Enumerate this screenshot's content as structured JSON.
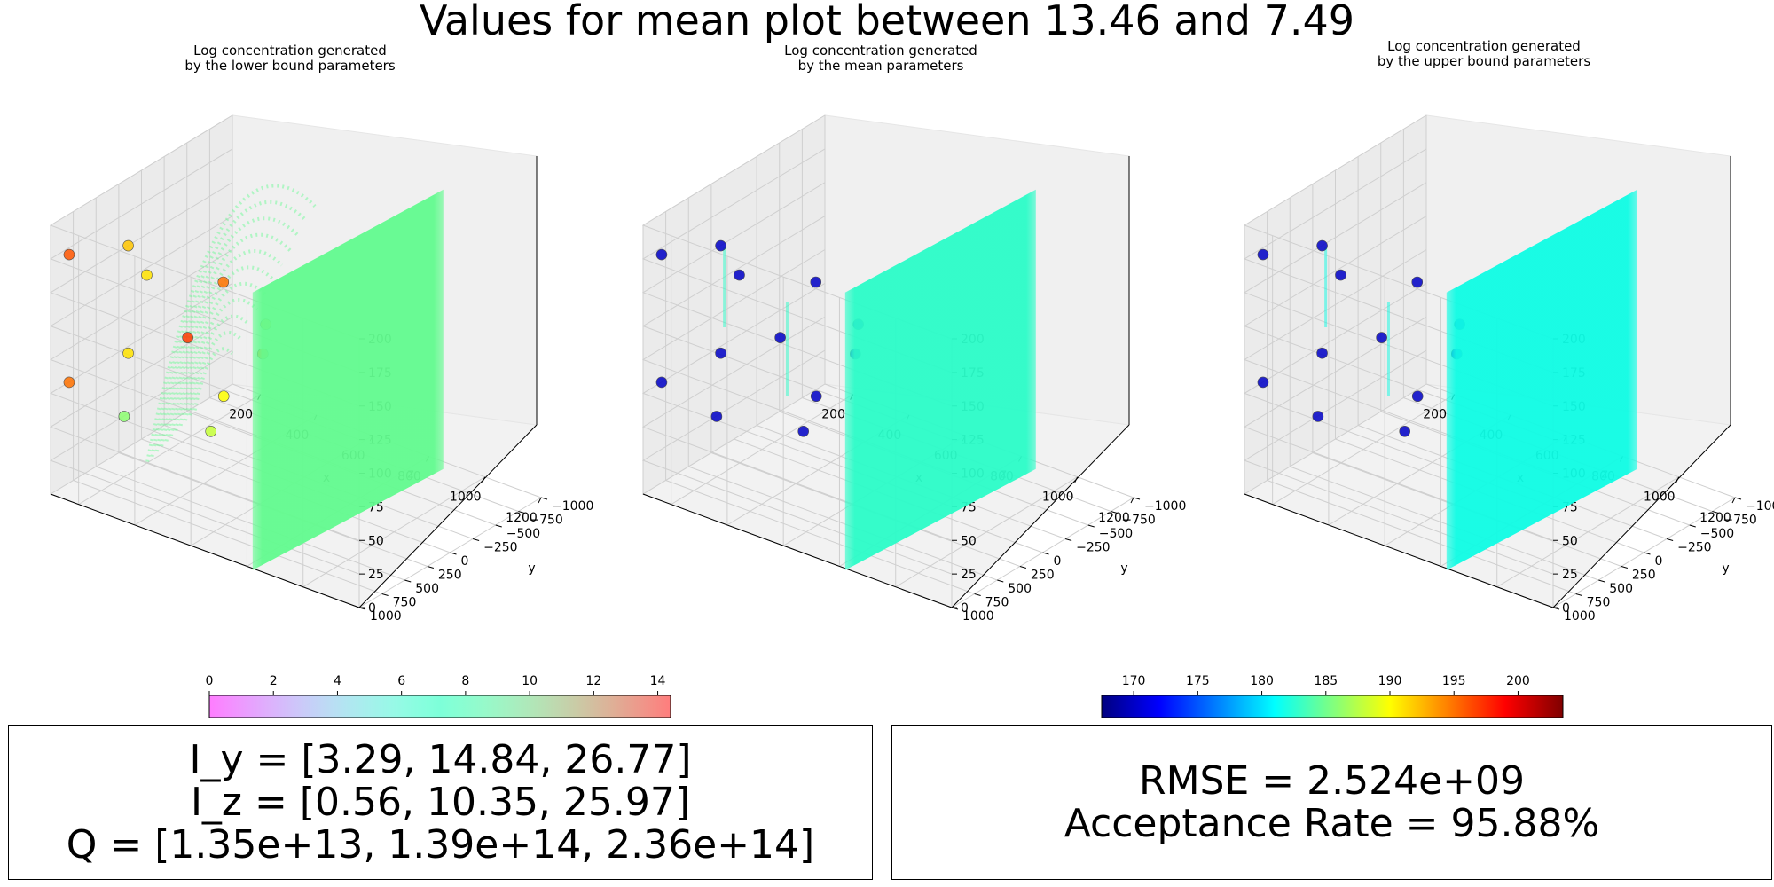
{
  "suptitle": "Values for mean plot between 13.46 and 7.49",
  "chart_data": [
    {
      "type": "scatter",
      "projection": "3d",
      "title_lines": [
        "Log concentration generated",
        "by the lower bound parameters"
      ],
      "xlabel": "x",
      "ylabel": "y",
      "zlabel": "z",
      "xticks": [
        200,
        400,
        600,
        800,
        1000,
        1200
      ],
      "yticks": [
        -1000,
        -750,
        -500,
        -250,
        0,
        250,
        500,
        750,
        1000
      ],
      "zticks": [
        0,
        25,
        50,
        75,
        100,
        125,
        150,
        175,
        200
      ],
      "xlim": [
        100,
        1200
      ],
      "ylim": [
        -1000,
        1000
      ],
      "zlim": [
        0,
        200
      ],
      "sheet_color": "#62fb8f",
      "has_arcs": true,
      "points": [
        {
          "x": 150,
          "y": 950,
          "z": 180,
          "value": 196
        },
        {
          "x": 150,
          "y": 950,
          "z": 85,
          "value": 195
        },
        {
          "x": 150,
          "y": 300,
          "z": 160,
          "value": 192
        },
        {
          "x": 150,
          "y": 300,
          "z": 80,
          "value": 191
        },
        {
          "x": 200,
          "y": 500,
          "z": 45,
          "value": 186
        },
        {
          "x": 200,
          "y": -200,
          "z": 75,
          "value": 197
        },
        {
          "x": 250,
          "y": -300,
          "z": 5,
          "value": 188
        },
        {
          "x": 300,
          "y": -750,
          "z": 70,
          "value": 193
        },
        {
          "x": 150,
          "y": -750,
          "z": 5,
          "value": 190
        },
        {
          "x": 100,
          "y": -900,
          "z": 80,
          "value": 195
        },
        {
          "x": 500,
          "y": -100,
          "z": 90,
          "value": 194
        },
        {
          "x": 200,
          "y": 250,
          "z": 140,
          "value": 191
        }
      ]
    },
    {
      "type": "scatter",
      "projection": "3d",
      "title_lines": [
        "Log concentration generated",
        "by the mean parameters"
      ],
      "xlabel": "x",
      "ylabel": "y",
      "zlabel": "z",
      "xticks": [
        200,
        400,
        600,
        800,
        1000,
        1200
      ],
      "yticks": [
        -1000,
        -750,
        -500,
        -250,
        0,
        250,
        500,
        750,
        1000
      ],
      "zticks": [
        0,
        25,
        50,
        75,
        100,
        125,
        150,
        175,
        200
      ],
      "xlim": [
        100,
        1200
      ],
      "ylim": [
        -1000,
        1000
      ],
      "zlim": [
        0,
        200
      ],
      "sheet_color": "#2bfcc8",
      "has_arcs": false,
      "points": [
        {
          "x": 150,
          "y": 950,
          "z": 180,
          "value": 170
        },
        {
          "x": 150,
          "y": 950,
          "z": 85,
          "value": 170
        },
        {
          "x": 150,
          "y": 300,
          "z": 160,
          "value": 170
        },
        {
          "x": 150,
          "y": 300,
          "z": 80,
          "value": 170
        },
        {
          "x": 200,
          "y": 500,
          "z": 45,
          "value": 170
        },
        {
          "x": 200,
          "y": -200,
          "z": 75,
          "value": 170
        },
        {
          "x": 250,
          "y": -300,
          "z": 5,
          "value": 170
        },
        {
          "x": 300,
          "y": -750,
          "z": 70,
          "value": 170
        },
        {
          "x": 150,
          "y": -750,
          "z": 5,
          "value": 170
        },
        {
          "x": 100,
          "y": -900,
          "z": 80,
          "value": 170
        },
        {
          "x": 500,
          "y": -100,
          "z": 90,
          "value": 170
        },
        {
          "x": 200,
          "y": 250,
          "z": 140,
          "value": 170
        }
      ]
    },
    {
      "type": "scatter",
      "projection": "3d",
      "title_lines": [
        "Log concentration generated",
        "by the upper bound parameters"
      ],
      "xlabel": "x",
      "ylabel": "y",
      "zlabel": "z",
      "xticks": [
        200,
        400,
        600,
        800,
        1000,
        1200
      ],
      "yticks": [
        -1000,
        -750,
        -500,
        -250,
        0,
        250,
        500,
        750,
        1000
      ],
      "zticks": [
        0,
        25,
        50,
        75,
        100,
        125,
        150,
        175,
        200
      ],
      "xlim": [
        100,
        1200
      ],
      "ylim": [
        -1000,
        1000
      ],
      "zlim": [
        0,
        200
      ],
      "sheet_color": "#0ffce4",
      "has_arcs": false,
      "points": [
        {
          "x": 150,
          "y": 950,
          "z": 180,
          "value": 170
        },
        {
          "x": 150,
          "y": 950,
          "z": 85,
          "value": 170
        },
        {
          "x": 150,
          "y": 300,
          "z": 160,
          "value": 170
        },
        {
          "x": 150,
          "y": 300,
          "z": 80,
          "value": 170
        },
        {
          "x": 200,
          "y": 500,
          "z": 45,
          "value": 170
        },
        {
          "x": 200,
          "y": -200,
          "z": 75,
          "value": 170
        },
        {
          "x": 250,
          "y": -300,
          "z": 5,
          "value": 170
        },
        {
          "x": 300,
          "y": -750,
          "z": 70,
          "value": 170
        },
        {
          "x": 150,
          "y": -750,
          "z": 5,
          "value": 170
        },
        {
          "x": 100,
          "y": -900,
          "z": 80,
          "value": 170
        },
        {
          "x": 500,
          "y": -100,
          "z": 90,
          "value": 170
        },
        {
          "x": 200,
          "y": 250,
          "z": 140,
          "value": 170
        }
      ]
    }
  ],
  "colorbars": [
    {
      "cmap": "rainbow-pastel",
      "ticks": [
        0,
        2,
        4,
        6,
        8,
        10,
        12,
        14
      ],
      "range": [
        0,
        14.4
      ]
    },
    {
      "cmap": "jet",
      "ticks": [
        170,
        175,
        180,
        185,
        190,
        195,
        200
      ],
      "range": [
        167.5,
        203.5
      ]
    }
  ],
  "info_left": {
    "lines": [
      "I_y = [3.29, 14.84, 26.77]",
      "I_z = [0.56, 10.35, 25.97]",
      "Q = [1.35e+13, 1.39e+14, 2.36e+14]"
    ]
  },
  "info_right": {
    "lines": [
      "RMSE = 2.524e+09",
      "Acceptance Rate = 95.88%"
    ]
  }
}
